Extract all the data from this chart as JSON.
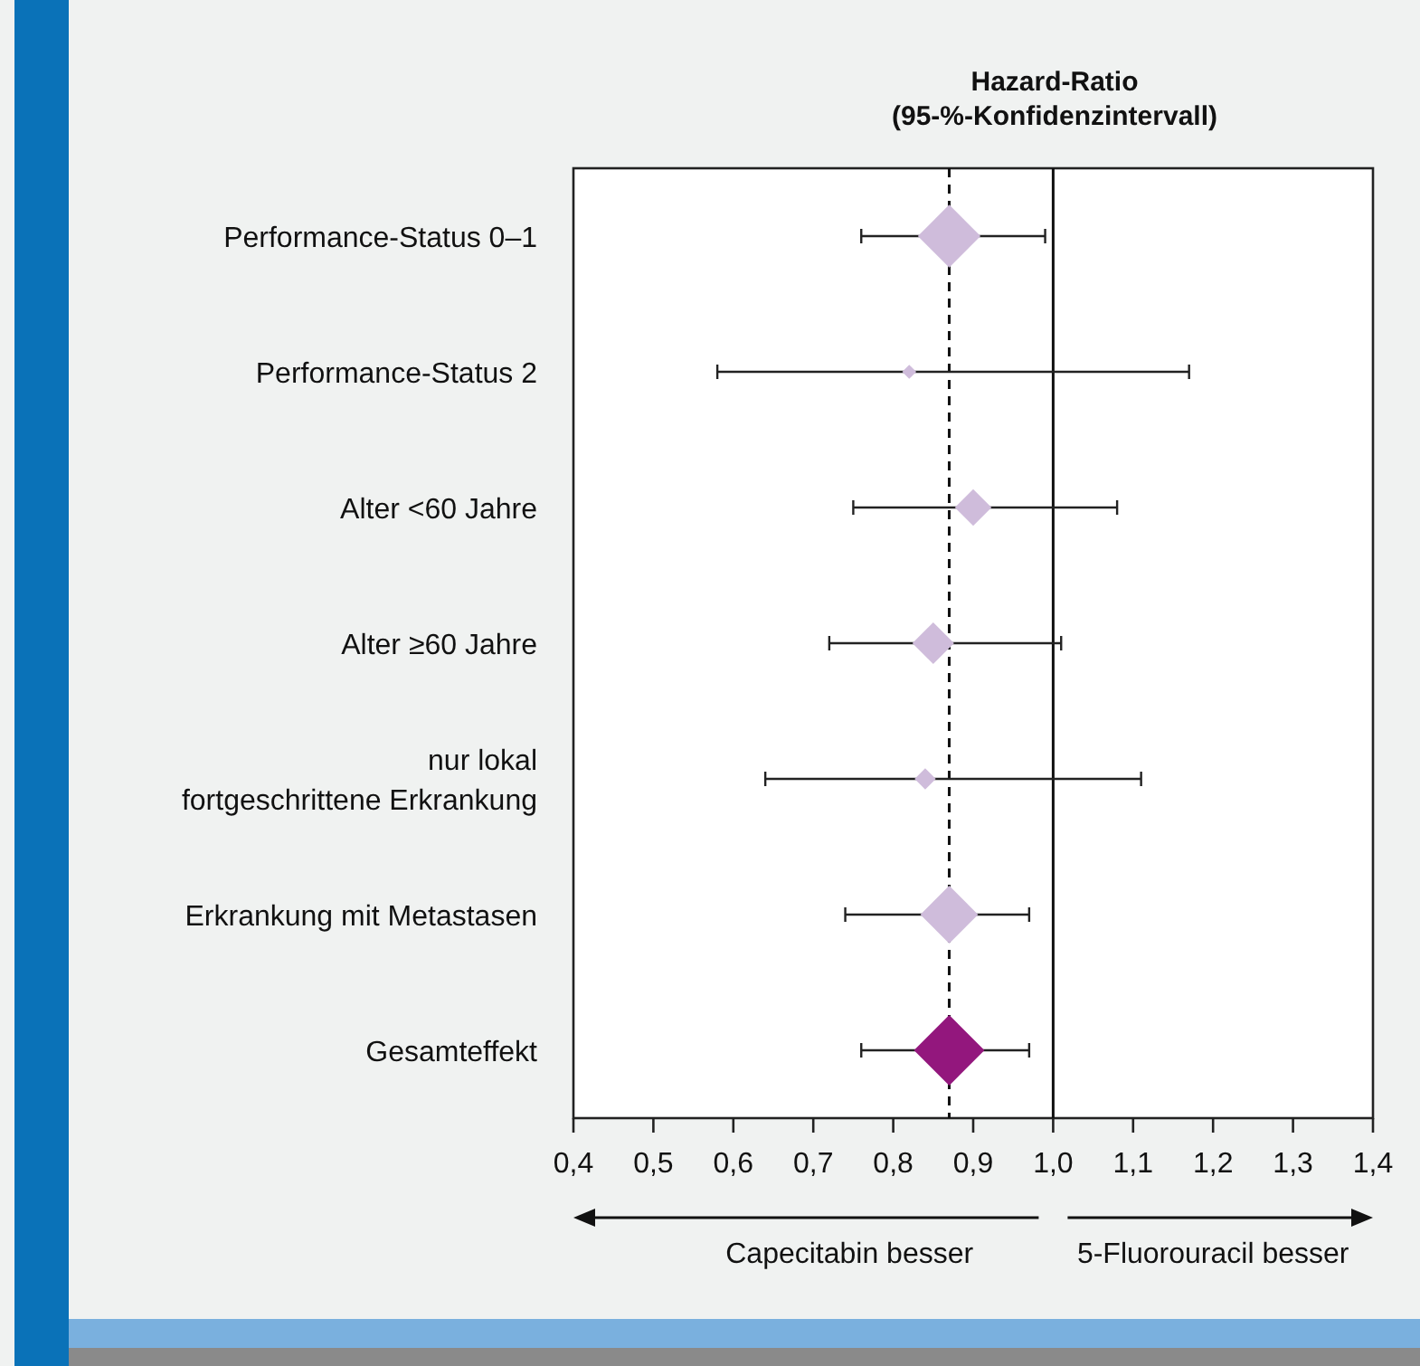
{
  "chart_data": {
    "type": "bubble",
    "orientation": "horizontal",
    "marker": "diamond",
    "title": "Hazard-Ratio\n(95-%-Konfidenzintervall)",
    "categories": [
      "Performance-Status 0–1",
      "Performance-Status 2",
      "Alter <60 Jahre",
      "Alter ≥60 Jahre",
      "nur lokal\nfortgeschrittene Erkrankung",
      "Erkrankung mit Metastasen",
      "Gesamteffekt"
    ],
    "values": [
      0.87,
      0.82,
      0.9,
      0.85,
      0.84,
      0.87,
      0.87
    ],
    "sizes": [
      0.79,
      0.04,
      0.27,
      0.35,
      0.09,
      0.67,
      1
    ],
    "errors": [
      [
        0.76,
        0.99
      ],
      [
        0.58,
        1.17
      ],
      [
        0.75,
        1.08
      ],
      [
        0.72,
        1.01
      ],
      [
        0.64,
        1.11
      ],
      [
        0.74,
        0.97
      ],
      [
        0.76,
        0.97
      ]
    ],
    "colors": [
      "#cfbcdb",
      "#cfbcdb",
      "#cfbcdb",
      "#cfbcdb",
      "#cfbcdb",
      "#cfbcdb",
      "#93177d"
    ],
    "xlim": [
      0.4,
      1.4
    ],
    "xticks": [
      {
        "value": 0.4,
        "label": "0,4"
      },
      {
        "value": 0.5,
        "label": "0,5"
      },
      {
        "value": 0.6,
        "label": "0,6"
      },
      {
        "value": 0.7,
        "label": "0,7"
      },
      {
        "value": 0.8,
        "label": "0,8"
      },
      {
        "value": 0.9,
        "label": "0,9"
      },
      {
        "value": 1.0,
        "label": "1,0"
      },
      {
        "value": 1.1,
        "label": "1,1"
      },
      {
        "value": 1.2,
        "label": "1,2"
      },
      {
        "value": 1.3,
        "label": "1,3"
      },
      {
        "value": 1.4,
        "label": "1,4"
      }
    ],
    "ref_lines": [
      {
        "axis": "x",
        "value": 0.87,
        "line_style": "dashed"
      },
      {
        "axis": "x",
        "value": 1.0,
        "line_style": "solid"
      }
    ],
    "annotations": [
      "Capecitabin besser",
      "5-Fluorouracil besser"
    ]
  }
}
